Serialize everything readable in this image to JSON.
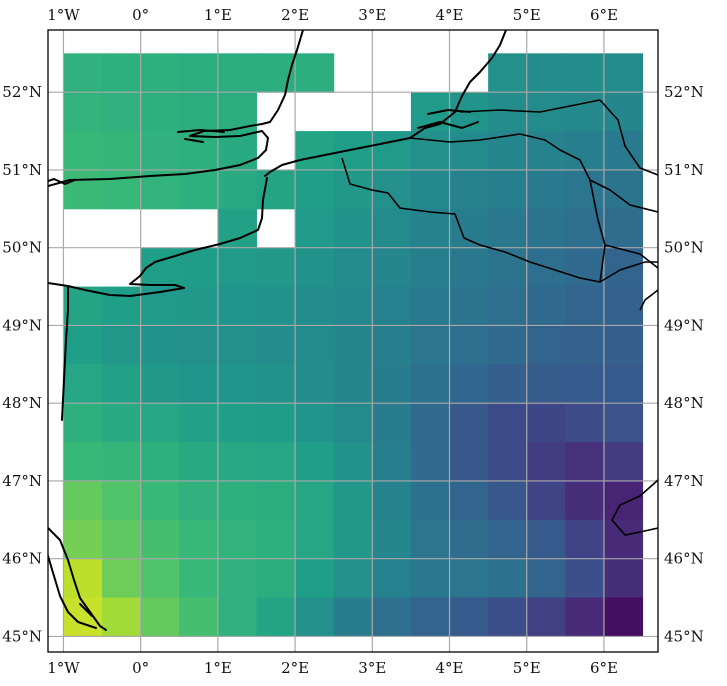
{
  "map": {
    "projection": "PlateCarree",
    "extent": {
      "lon": [
        -1.2,
        6.7
      ],
      "lat": [
        44.8,
        52.8
      ]
    },
    "lon_ticks": [
      {
        "value": -1,
        "label": "1°W"
      },
      {
        "value": 0,
        "label": "0°"
      },
      {
        "value": 1,
        "label": "1°E"
      },
      {
        "value": 2,
        "label": "2°E"
      },
      {
        "value": 3,
        "label": "3°E"
      },
      {
        "value": 4,
        "label": "4°E"
      },
      {
        "value": 5,
        "label": "5°E"
      },
      {
        "value": 6,
        "label": "6°E"
      }
    ],
    "lat_ticks": [
      {
        "value": 45,
        "label": "45°N"
      },
      {
        "value": 46,
        "label": "46°N"
      },
      {
        "value": 47,
        "label": "47°N"
      },
      {
        "value": 48,
        "label": "48°N"
      },
      {
        "value": 49,
        "label": "49°N"
      },
      {
        "value": 50,
        "label": "50°N"
      },
      {
        "value": 51,
        "label": "51°N"
      },
      {
        "value": 52,
        "label": "52°N"
      }
    ],
    "gridlines": true,
    "colormap": "viridis",
    "colors": {
      "frame": "#000000",
      "gridline": "#a9a9a9",
      "coastline": "#000000",
      "missing": "#ffffff"
    }
  },
  "chart_data": {
    "type": "heatmap",
    "title": "",
    "xlabel": "",
    "ylabel": "",
    "x_edges": [
      -1.0,
      -0.5,
      0.0,
      0.5,
      1.0,
      1.5,
      2.0,
      2.5,
      3.0,
      3.5,
      4.0,
      4.5,
      5.0,
      5.5,
      6.0,
      6.5
    ],
    "y_edges": [
      52.5,
      52.0,
      51.5,
      51.0,
      50.5,
      50.0,
      49.5,
      49.0,
      48.5,
      48.0,
      47.5,
      47.0,
      46.5,
      46.0,
      45.5,
      45.0
    ],
    "value_scale": "relative (0 = darkest purple, 1 = brightest yellow); no colorbar shown",
    "rows_north_to_south": [
      [
        0.64,
        0.63,
        0.63,
        0.62,
        0.62,
        0.62,
        0.62,
        null,
        null,
        null,
        null,
        0.5,
        0.49,
        0.49,
        0.48
      ],
      [
        0.65,
        0.64,
        0.63,
        0.62,
        0.62,
        null,
        null,
        null,
        null,
        0.54,
        0.52,
        0.49,
        0.48,
        0.47,
        0.46
      ],
      [
        0.67,
        0.66,
        0.64,
        0.63,
        0.61,
        null,
        0.58,
        0.56,
        0.54,
        0.5,
        0.48,
        0.46,
        0.45,
        0.43,
        0.41
      ],
      [
        0.68,
        0.67,
        0.65,
        0.63,
        0.61,
        0.58,
        0.56,
        0.53,
        0.5,
        0.47,
        0.45,
        0.43,
        0.41,
        0.39,
        0.38
      ],
      [
        null,
        null,
        null,
        null,
        0.57,
        null,
        0.54,
        0.51,
        0.48,
        0.45,
        0.42,
        0.4,
        0.38,
        0.36,
        0.35
      ],
      [
        null,
        null,
        0.56,
        0.55,
        0.54,
        0.53,
        0.51,
        0.48,
        0.46,
        0.43,
        0.4,
        0.38,
        0.36,
        0.34,
        0.32
      ],
      [
        0.58,
        0.56,
        0.54,
        0.53,
        0.52,
        0.51,
        0.49,
        0.47,
        0.44,
        0.41,
        0.38,
        0.36,
        0.34,
        0.32,
        0.31
      ],
      [
        0.56,
        0.53,
        0.51,
        0.5,
        0.5,
        0.49,
        0.48,
        0.46,
        0.43,
        0.39,
        0.36,
        0.34,
        0.32,
        0.31,
        0.3
      ],
      [
        0.59,
        0.57,
        0.53,
        0.52,
        0.52,
        0.51,
        0.49,
        0.46,
        0.42,
        0.37,
        0.33,
        0.3,
        0.29,
        0.28,
        0.28
      ],
      [
        0.63,
        0.61,
        0.59,
        0.57,
        0.56,
        0.55,
        0.52,
        0.48,
        0.42,
        0.34,
        0.27,
        0.23,
        0.21,
        0.23,
        0.25
      ],
      [
        0.67,
        0.66,
        0.63,
        0.61,
        0.6,
        0.59,
        0.56,
        0.51,
        0.43,
        0.34,
        0.27,
        0.23,
        0.18,
        0.14,
        0.17
      ],
      [
        0.76,
        0.72,
        0.67,
        0.64,
        0.63,
        0.62,
        0.59,
        0.53,
        0.45,
        0.37,
        0.32,
        0.27,
        0.2,
        0.13,
        0.1
      ],
      [
        0.79,
        0.75,
        0.7,
        0.67,
        0.65,
        0.63,
        0.59,
        0.53,
        0.46,
        0.39,
        0.35,
        0.32,
        0.28,
        0.2,
        0.12
      ],
      [
        0.9,
        0.78,
        0.72,
        0.67,
        0.64,
        0.62,
        0.56,
        0.5,
        0.44,
        0.4,
        0.39,
        0.37,
        0.32,
        0.24,
        0.13
      ],
      [
        0.92,
        0.86,
        0.76,
        0.7,
        0.64,
        0.58,
        0.5,
        0.42,
        0.36,
        0.32,
        0.28,
        0.24,
        0.19,
        0.12,
        0.04
      ]
    ]
  }
}
